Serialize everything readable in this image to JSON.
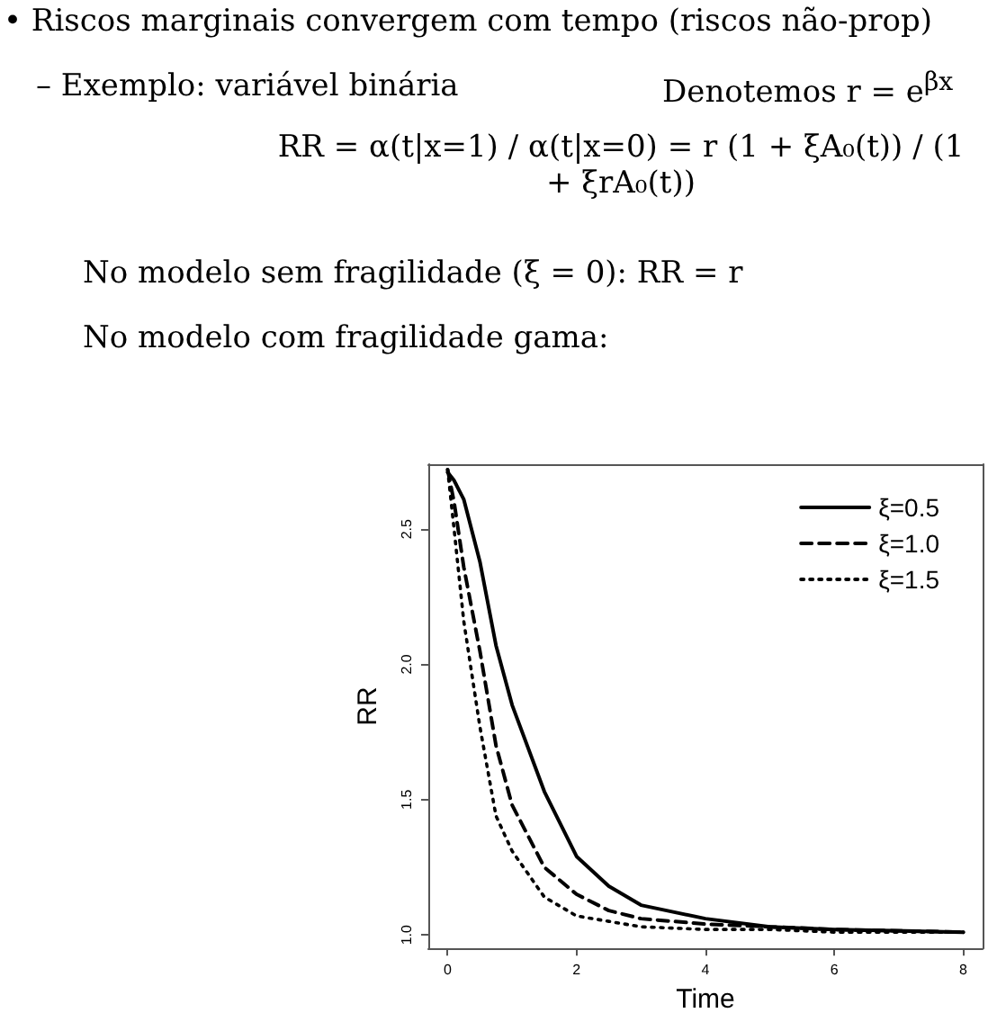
{
  "chart_data": {
    "type": "line",
    "title": "• Riscos marginais convergem com tempo (riscos não-prop)",
    "annotations": [
      "– Exemplo: variável binária",
      "Denotemos r = e$^{βx}$",
      "RR = α(t|x=1) / α(t|x=0) = r (1 + ξA₀(t)) / (1 + ξrA₀(t))",
      "No modelo sem fragilidade (ξ = 0):  RR = r",
      "No modelo com fragilidade gama:"
    ],
    "xlabel": "Time",
    "ylabel": "RR",
    "x": [
      0,
      0.1,
      0.25,
      0.5,
      0.75,
      1,
      1.5,
      2,
      2.5,
      3,
      4,
      5,
      6,
      8
    ],
    "series": [
      {
        "name": "ξ=0.5",
        "color": "#000000",
        "line_style": "solid",
        "values": [
          2.71,
          2.68,
          2.61,
          2.38,
          2.07,
          1.85,
          1.53,
          1.29,
          1.18,
          1.11,
          1.06,
          1.03,
          1.02,
          1.01
        ]
      },
      {
        "name": "ξ=1.0",
        "color": "#000000",
        "line_style": "dashed",
        "values": [
          2.72,
          2.6,
          2.36,
          2.05,
          1.7,
          1.48,
          1.25,
          1.15,
          1.09,
          1.06,
          1.04,
          1.03,
          1.02,
          1.01
        ]
      },
      {
        "name": "ξ=1.5",
        "color": "#000000",
        "line_style": "dotted",
        "values": [
          2.72,
          2.5,
          2.16,
          1.77,
          1.44,
          1.31,
          1.14,
          1.07,
          1.05,
          1.03,
          1.02,
          1.02,
          1.01,
          1.01
        ]
      }
    ],
    "xlim": [
      -0.3,
      8.3
    ],
    "xticks": [
      0,
      2,
      4,
      6,
      8
    ],
    "ylim": [
      0.95,
      2.74
    ],
    "yticks": [
      {
        "value": 1,
        "label": "1.0"
      },
      {
        "value": 1.5,
        "label": "1.5"
      },
      {
        "value": 2,
        "label": "2.0"
      },
      {
        "value": 2.5,
        "label": "2.5"
      }
    ],
    "legend": "top right",
    "grid": false,
    "marker": "none"
  }
}
